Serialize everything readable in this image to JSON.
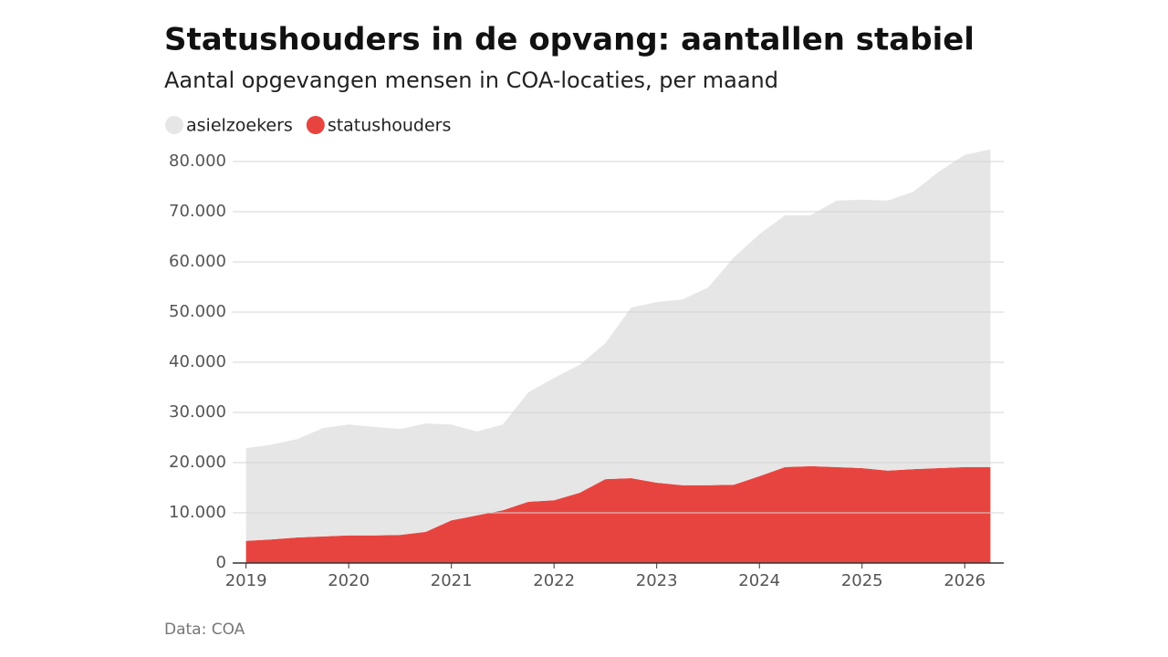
{
  "chart_data": {
    "type": "area",
    "stacked": true,
    "title": "Statushouders in de opvang: aantallen stabiel",
    "subtitle": "Aantal opgevangen mensen in COA-locaties, per maand",
    "source": "Data: COA",
    "x": [
      2019,
      2019.25,
      2019.5,
      2019.75,
      2020,
      2020.25,
      2020.5,
      2020.75,
      2021,
      2021.25,
      2021.5,
      2021.75,
      2022,
      2022.25,
      2022.5,
      2022.75,
      2023,
      2023.25,
      2023.5,
      2023.75,
      2024,
      2024.25,
      2024.5,
      2024.75,
      2025,
      2025.25,
      2025.5,
      2025.75,
      2026,
      2026.25
    ],
    "series": [
      {
        "name": "asielzoekers",
        "color": "#e6e6e6",
        "values": [
          18500,
          18900,
          19600,
          21600,
          22100,
          21600,
          21100,
          21600,
          19100,
          16700,
          17100,
          21800,
          24400,
          25500,
          27100,
          34000,
          36000,
          37000,
          39400,
          45300,
          48200,
          50200,
          50000,
          53100,
          53500,
          53800,
          55300,
          59100,
          62200,
          63300
        ]
      },
      {
        "name": "statushouders",
        "color": "#e8443f",
        "values": [
          4400,
          4700,
          5100,
          5300,
          5500,
          5500,
          5600,
          6200,
          8500,
          9500,
          10500,
          12200,
          12500,
          14000,
          16700,
          16900,
          16000,
          15500,
          15500,
          15600,
          17300,
          19100,
          19300,
          19100,
          18900,
          18400,
          18700,
          18900,
          19100,
          19100
        ]
      }
    ],
    "xlim": [
      2018.87,
      2026.38
    ],
    "xticks": [
      2019,
      2020,
      2021,
      2022,
      2023,
      2024,
      2025,
      2026
    ],
    "ylim": [
      0,
      80000
    ],
    "yticks": [
      0,
      {
        "value": 10000,
        "label": "10.000"
      },
      {
        "value": 20000,
        "label": "20.000"
      },
      {
        "value": 30000,
        "label": "30.000"
      },
      {
        "value": 40000,
        "label": "40.000"
      },
      {
        "value": 50000,
        "label": "50.000"
      },
      {
        "value": 60000,
        "label": "60.000"
      },
      {
        "value": 70000,
        "label": "70.000"
      },
      {
        "value": 80000,
        "label": "80.000"
      }
    ],
    "grid": true
  }
}
